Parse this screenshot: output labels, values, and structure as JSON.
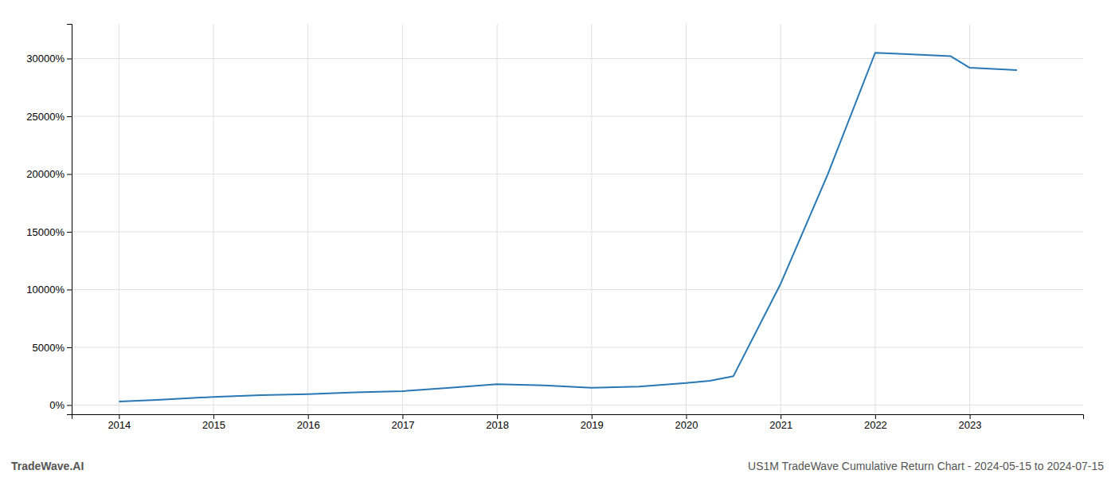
{
  "chart_data": {
    "type": "line",
    "x": [
      2014.0,
      2014.4,
      2015.0,
      2015.5,
      2016.0,
      2016.5,
      2017.0,
      2017.5,
      2018.0,
      2018.5,
      2019.0,
      2019.5,
      2020.0,
      2020.25,
      2020.5,
      2021.0,
      2021.5,
      2022.0,
      2022.3,
      2022.8,
      2023.0,
      2023.5
    ],
    "values": [
      300,
      450,
      700,
      850,
      950,
      1100,
      1200,
      1500,
      1800,
      1700,
      1500,
      1600,
      1900,
      2100,
      2500,
      10500,
      20000,
      30500,
      30400,
      30200,
      29200,
      29000
    ],
    "color": "#2878b5",
    "xlim": [
      2013.5,
      2024.2
    ],
    "ylim": [
      -800,
      33000
    ],
    "xticks": [
      2014,
      2015,
      2016,
      2017,
      2018,
      2019,
      2020,
      2021,
      2022,
      2023
    ],
    "yticks": [
      {
        "value": 0,
        "label": "0%"
      },
      {
        "value": 5000,
        "label": "5000%"
      },
      {
        "value": 10000,
        "label": "10000%"
      },
      {
        "value": 15000,
        "label": "15000%"
      },
      {
        "value": 20000,
        "label": "20000%"
      },
      {
        "value": 25000,
        "label": "25000%"
      },
      {
        "value": 30000,
        "label": "30000%"
      }
    ],
    "grid": true,
    "annotations": [
      "TradeWave.AI",
      "US1M TradeWave Cumulative Return Chart - 2024-05-15 to 2024-07-15"
    ]
  }
}
